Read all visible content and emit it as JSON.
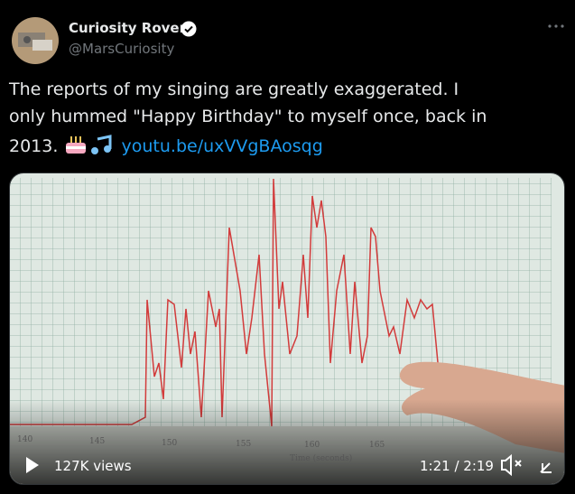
{
  "author": {
    "name": "Curiosity Rover",
    "handle": "@MarsCuriosity"
  },
  "tweet": {
    "lines": [
      "The reports of my singing are greatly exaggerated. I",
      "only hummed \"Happy Birthday\" to myself once, back in",
      "2013."
    ],
    "link": "youtu.be/uxVVgBAosqg"
  },
  "video": {
    "views": "127K views",
    "time": "1:21 / 2:19",
    "axis_labels": [
      "140",
      "145",
      "150",
      "155",
      "160",
      "165"
    ],
    "axis_title": "Time (seconds)"
  }
}
